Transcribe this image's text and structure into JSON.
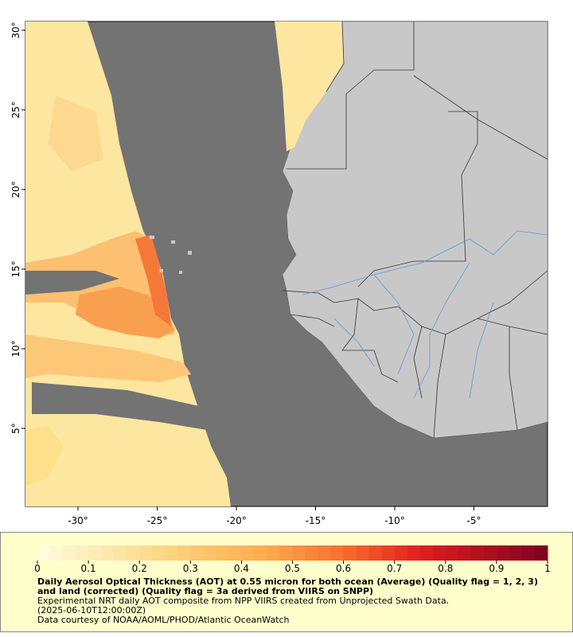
{
  "map": {
    "lon_ticks": [
      {
        "value": -30,
        "label": "-30°"
      },
      {
        "value": -25,
        "label": "-25°"
      },
      {
        "value": -20,
        "label": "-20°"
      },
      {
        "value": -15,
        "label": "-15°"
      },
      {
        "value": -10,
        "label": "-10°"
      },
      {
        "value": -5,
        "label": "-5°"
      }
    ],
    "lat_ticks": [
      {
        "value": 5,
        "label": "5°"
      },
      {
        "value": 10,
        "label": "10°"
      },
      {
        "value": 15,
        "label": "15°"
      },
      {
        "value": 20,
        "label": "20°"
      },
      {
        "value": 25,
        "label": "25°"
      },
      {
        "value": 30,
        "label": "30°"
      }
    ],
    "colorbar": {
      "ticks": [
        0,
        0.1,
        0.2,
        0.3,
        0.4,
        0.5,
        0.6,
        0.7,
        0.8,
        0.9,
        1
      ]
    },
    "caption": {
      "title": "Daily Aerosol Optical Thickness (AOT) at 0.55 micron for both ocean (Average) (Quality flag = 1, 2, 3) and land (corrected) (Quality flag = 3a derived from VIIRS on SNPP)",
      "lines": [
        "Experimental NRT daily AOT composite from NPP VIIRS created from Unprojected Swath Data.",
        "(2025-06-10T12:00:00Z)",
        "Data courtesy of NOAA/AOML/PHOD/Atlantic OceanWatch"
      ]
    }
  }
}
